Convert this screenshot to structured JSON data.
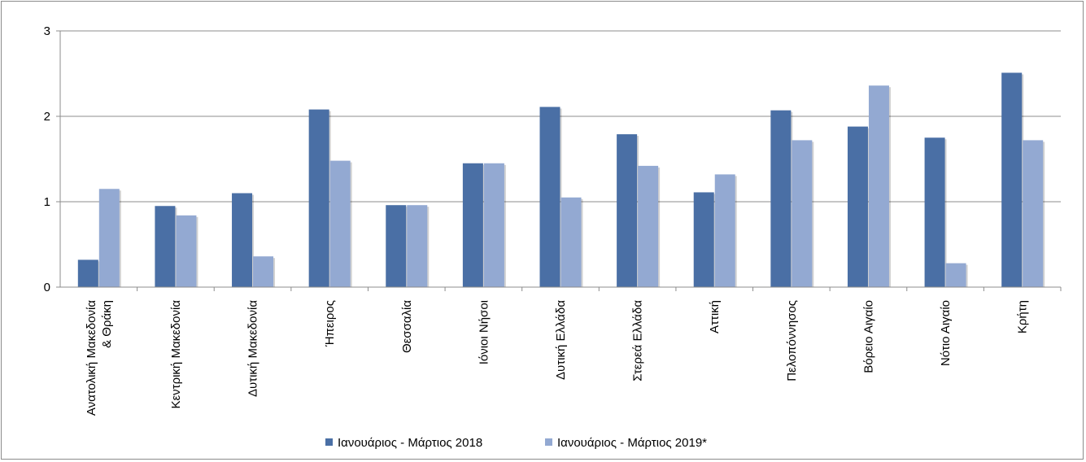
{
  "chart_data": {
    "type": "bar",
    "title": "",
    "xlabel": "",
    "ylabel": "",
    "ylim": [
      0,
      3
    ],
    "yticks": [
      "0",
      "1",
      "2",
      "3"
    ],
    "grid": true,
    "legend_position": "bottom",
    "categories": [
      [
        "Ανατολική Μακεδονία",
        "& Θράκη"
      ],
      [
        "Κεντρική Μακεδονία"
      ],
      [
        "Δυτική Μακεδονία"
      ],
      [
        "Ήπειρος"
      ],
      [
        "Θεσσαλία"
      ],
      [
        "Ιόνιοι Νήσοι"
      ],
      [
        "Δυτική Ελλάδα"
      ],
      [
        "Στερεά Ελλάδα"
      ],
      [
        "Αττική"
      ],
      [
        "Πελοπόννησος"
      ],
      [
        "Βόρειο Αιγαίο"
      ],
      [
        "Νότιο Αιγαίο"
      ],
      [
        "Κρήτη"
      ]
    ],
    "series": [
      {
        "name": "Ιανουάριος - Μάρτιος 2018",
        "color": "#4A6FA5",
        "values": [
          0.32,
          0.95,
          1.1,
          2.08,
          0.96,
          1.45,
          2.11,
          1.79,
          1.11,
          2.07,
          1.88,
          1.75,
          2.51
        ]
      },
      {
        "name": "Ιανουάριος - Μάρτιος 2019*",
        "color": "#93A9D2",
        "values": [
          1.15,
          0.84,
          0.36,
          1.48,
          0.96,
          1.45,
          1.05,
          1.42,
          1.32,
          1.72,
          2.36,
          0.28,
          1.72
        ]
      }
    ]
  }
}
